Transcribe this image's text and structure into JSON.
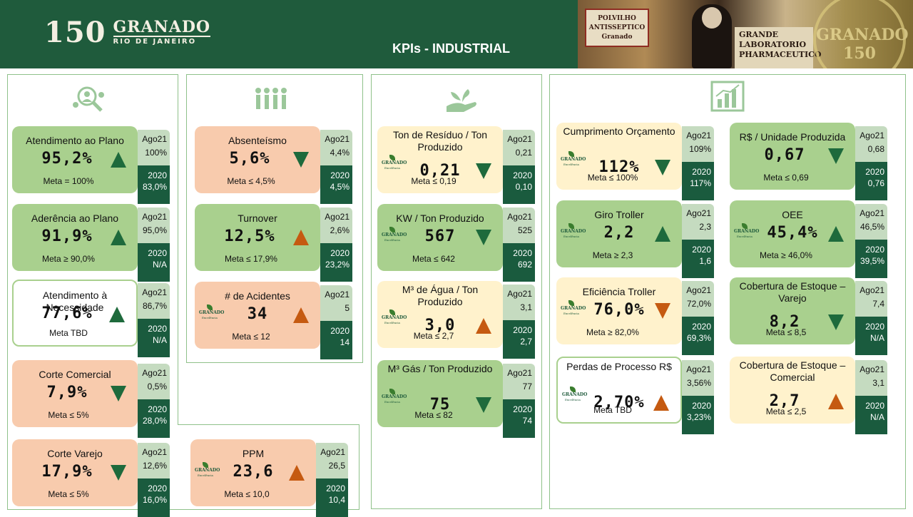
{
  "header": {
    "logo_number": "150",
    "logo_name": "GRANADO",
    "logo_city": "RIO DE JANEIRO",
    "title": "KPIs  - INDUSTRIAL",
    "banner_label": "POLVILHO ANTISSEPTICO Granado",
    "banner_sign": "GRANDE LABORATORIO PHARMACEUTICO",
    "banner_seal": "GRANADO 150"
  },
  "panel_icons": [
    "people-search-icon",
    "team-icon",
    "hand-plant-icon",
    "bar-chart-icon"
  ],
  "card_logo": {
    "name": "GRANADO",
    "sub": "Excelência"
  },
  "cards": [
    {
      "title": "Atendimento ao Plano",
      "value": "95,2%",
      "arrow": "up",
      "arrow_color": "#1e6a3c",
      "meta": "Meta = 100%",
      "ago21_label": "Ago21",
      "ago21": "100%",
      "y2020_label": "2020",
      "y2020": "83,0%",
      "bg": "#a9d08e"
    },
    {
      "title": "Aderência ao Plano",
      "value": "91,9%",
      "arrow": "up",
      "arrow_color": "#1e6a3c",
      "meta": "Meta ≥ 90,0%",
      "ago21_label": "Ago21",
      "ago21": "95,0%",
      "y2020_label": "2020",
      "y2020": "N/A",
      "bg": "#a9d08e"
    },
    {
      "title": "Atendimento à Necessidade",
      "value": "77,6%",
      "arrow": "up",
      "arrow_color": "#1e6a3c",
      "meta": "Meta TBD",
      "ago21_label": "Ago21",
      "ago21": "86,7%",
      "y2020_label": "2020",
      "y2020": "N/A",
      "bg": "#ffffff"
    },
    {
      "title": "Corte Comercial",
      "value": "7,9%",
      "arrow": "down",
      "arrow_color": "#1e6a3c",
      "meta": "Meta ≤ 5%",
      "ago21_label": "Ago21",
      "ago21": "0,5%",
      "y2020_label": "2020",
      "y2020": "28,0%",
      "bg": "#f8cbad"
    },
    {
      "title": "Corte Varejo",
      "value": "17,9%",
      "arrow": "down",
      "arrow_color": "#1e6a3c",
      "meta": "Meta ≤ 5%",
      "ago21_label": "Ago21",
      "ago21": "12,6%",
      "y2020_label": "2020",
      "y2020": "16,0%",
      "bg": "#f8cbad"
    },
    {
      "title": "Absenteísmo",
      "value": "5,6%",
      "arrow": "down",
      "arrow_color": "#1e6a3c",
      "meta": "Meta ≤ 4,5%",
      "ago21_label": "Ago21",
      "ago21": "4,4%",
      "y2020_label": "2020",
      "y2020": "4,5%",
      "bg": "#f8cbad"
    },
    {
      "title": "Turnover",
      "value": "12,5%",
      "arrow": "up",
      "arrow_color": "#c55a11",
      "meta": "Meta ≤ 17,9%",
      "ago21_label": "Ago21",
      "ago21": "2,6%",
      "y2020_label": "2020",
      "y2020": "23,2%",
      "bg": "#a9d08e"
    },
    {
      "title": "# de Acidentes",
      "value": "34",
      "arrow": "up",
      "arrow_color": "#c55a11",
      "meta": "Meta ≤ 12",
      "ago21_label": "Ago21",
      "ago21": "5",
      "y2020_label": "2020",
      "y2020": "14",
      "bg": "#f8cbad"
    },
    {
      "title": "PPM",
      "value": "23,6",
      "arrow": "up",
      "arrow_color": "#c55a11",
      "meta": "Meta ≤ 10,0",
      "ago21_label": "Ago21",
      "ago21": "26,5",
      "y2020_label": "2020",
      "y2020": "10,4",
      "bg": "#f8cbad"
    },
    {
      "title": "Ton de Resíduo / Ton Produzido",
      "value": "0,21",
      "arrow": "down",
      "arrow_color": "#1e6a3c",
      "meta": "Meta ≤ 0,19",
      "ago21_label": "Ago21",
      "ago21": "0,21",
      "y2020_label": "2020",
      "y2020": "0,10",
      "bg": "#fff2cc"
    },
    {
      "title": "KW / Ton Produzido",
      "value": "567",
      "arrow": "down",
      "arrow_color": "#1e6a3c",
      "meta": "Meta ≤ 642",
      "ago21_label": "Ago21",
      "ago21": "525",
      "y2020_label": "2020",
      "y2020": "692",
      "bg": "#a9d08e"
    },
    {
      "title": "M³ de Água / Ton Produzido",
      "value": "3,0",
      "arrow": "up",
      "arrow_color": "#c55a11",
      "meta": "Meta ≤ 2,7",
      "ago21_label": "Ago21",
      "ago21": "3,1",
      "y2020_label": "2020",
      "y2020": "2,7",
      "bg": "#fff2cc"
    },
    {
      "title": "M³ Gás / Ton Produzido",
      "value": "75",
      "arrow": "down",
      "arrow_color": "#1e6a3c",
      "meta": "Meta ≤ 82",
      "ago21_label": "Ago21",
      "ago21": "77",
      "y2020_label": "2020",
      "y2020": "74",
      "bg": "#a9d08e"
    },
    {
      "title": "Cumprimento Orçamento",
      "value": "112%",
      "arrow": "down",
      "arrow_color": "#1e6a3c",
      "meta": "Meta ≤ 100%",
      "ago21_label": "Ago21",
      "ago21": "109%",
      "y2020_label": "2020",
      "y2020": "117%",
      "bg": "#fff2cc"
    },
    {
      "title": "Giro Troller",
      "value": "2,2",
      "arrow": "up",
      "arrow_color": "#1e6a3c",
      "meta": "Meta ≥ 2,3",
      "ago21_label": "Ago21",
      "ago21": "2,3",
      "y2020_label": "2020",
      "y2020": "1,6",
      "bg": "#a9d08e"
    },
    {
      "title": "Eficiência Troller",
      "value": "76,0%",
      "arrow": "down",
      "arrow_color": "#c55a11",
      "meta": "Meta ≥ 82,0%",
      "ago21_label": "Ago21",
      "ago21": "72,0%",
      "y2020_label": "2020",
      "y2020": "69,3%",
      "bg": "#fff2cc"
    },
    {
      "title": "Perdas de Processo R$",
      "value": "2,70%",
      "arrow": "up",
      "arrow_color": "#c55a11",
      "meta": "Meta TBD",
      "ago21_label": "Ago21",
      "ago21": "3,56%",
      "y2020_label": "2020",
      "y2020": "3,23%",
      "bg": "#ffffff"
    },
    {
      "title": "R$ / Unidade Produzida",
      "value": "0,67",
      "arrow": "down",
      "arrow_color": "#1e6a3c",
      "meta": "Meta ≤ 0,69",
      "ago21_label": "Ago21",
      "ago21": "0,68",
      "y2020_label": "2020",
      "y2020": "0,76",
      "bg": "#a9d08e"
    },
    {
      "title": "OEE",
      "value": "45,4%",
      "arrow": "up",
      "arrow_color": "#1e6a3c",
      "meta": "Meta ≥ 46,0%",
      "ago21_label": "Ago21",
      "ago21": "46,5%",
      "y2020_label": "2020",
      "y2020": "39,5%",
      "bg": "#a9d08e"
    },
    {
      "title": "Cobertura de Estoque – Varejo",
      "value": "8,2",
      "arrow": "down",
      "arrow_color": "#1e6a3c",
      "meta": "Meta ≤ 8,5",
      "ago21_label": "Ago21",
      "ago21": "7,4",
      "y2020_label": "2020",
      "y2020": "N/A",
      "bg": "#a9d08e"
    },
    {
      "title": "Cobertura de Estoque – Comercial",
      "value": "2,7",
      "arrow": "up",
      "arrow_color": "#c55a11",
      "meta": "Meta ≤ 2,5",
      "ago21_label": "Ago21",
      "ago21": "3,1",
      "y2020_label": "2020",
      "y2020": "N/A",
      "bg": "#fff2cc"
    }
  ]
}
